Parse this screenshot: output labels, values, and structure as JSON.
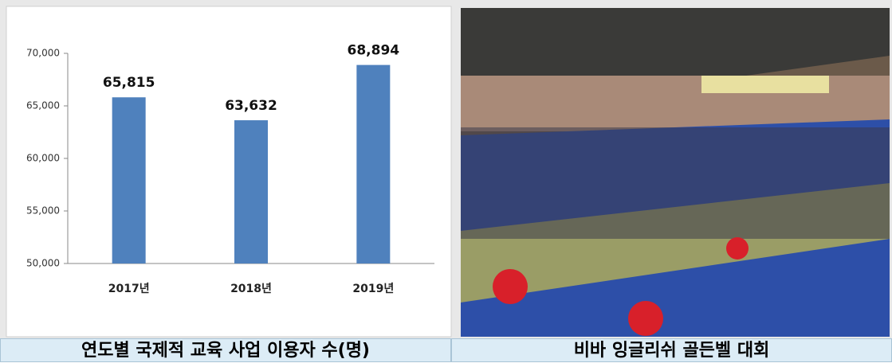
{
  "chart_data": {
    "type": "bar",
    "categories": [
      "2017년",
      "2018년",
      "2019년"
    ],
    "values": [
      65815,
      63632,
      68894
    ],
    "value_labels": [
      "65,815",
      "63,632",
      "68,894"
    ],
    "color": "#4f81bd",
    "ylim": [
      50000,
      70000
    ],
    "yticks": [
      {
        "value": 50000,
        "label": "50,000"
      },
      {
        "value": 55000,
        "label": "55,000"
      },
      {
        "value": 60000,
        "label": "60,000"
      },
      {
        "value": 65000,
        "label": "65,000"
      },
      {
        "value": 70000,
        "label": "70,000"
      }
    ],
    "grid": false
  },
  "captions": [
    "연도별 국제적 교육 사업 이용자 수(명)",
    "비바 잉글리쉬 골든벨 대회"
  ]
}
